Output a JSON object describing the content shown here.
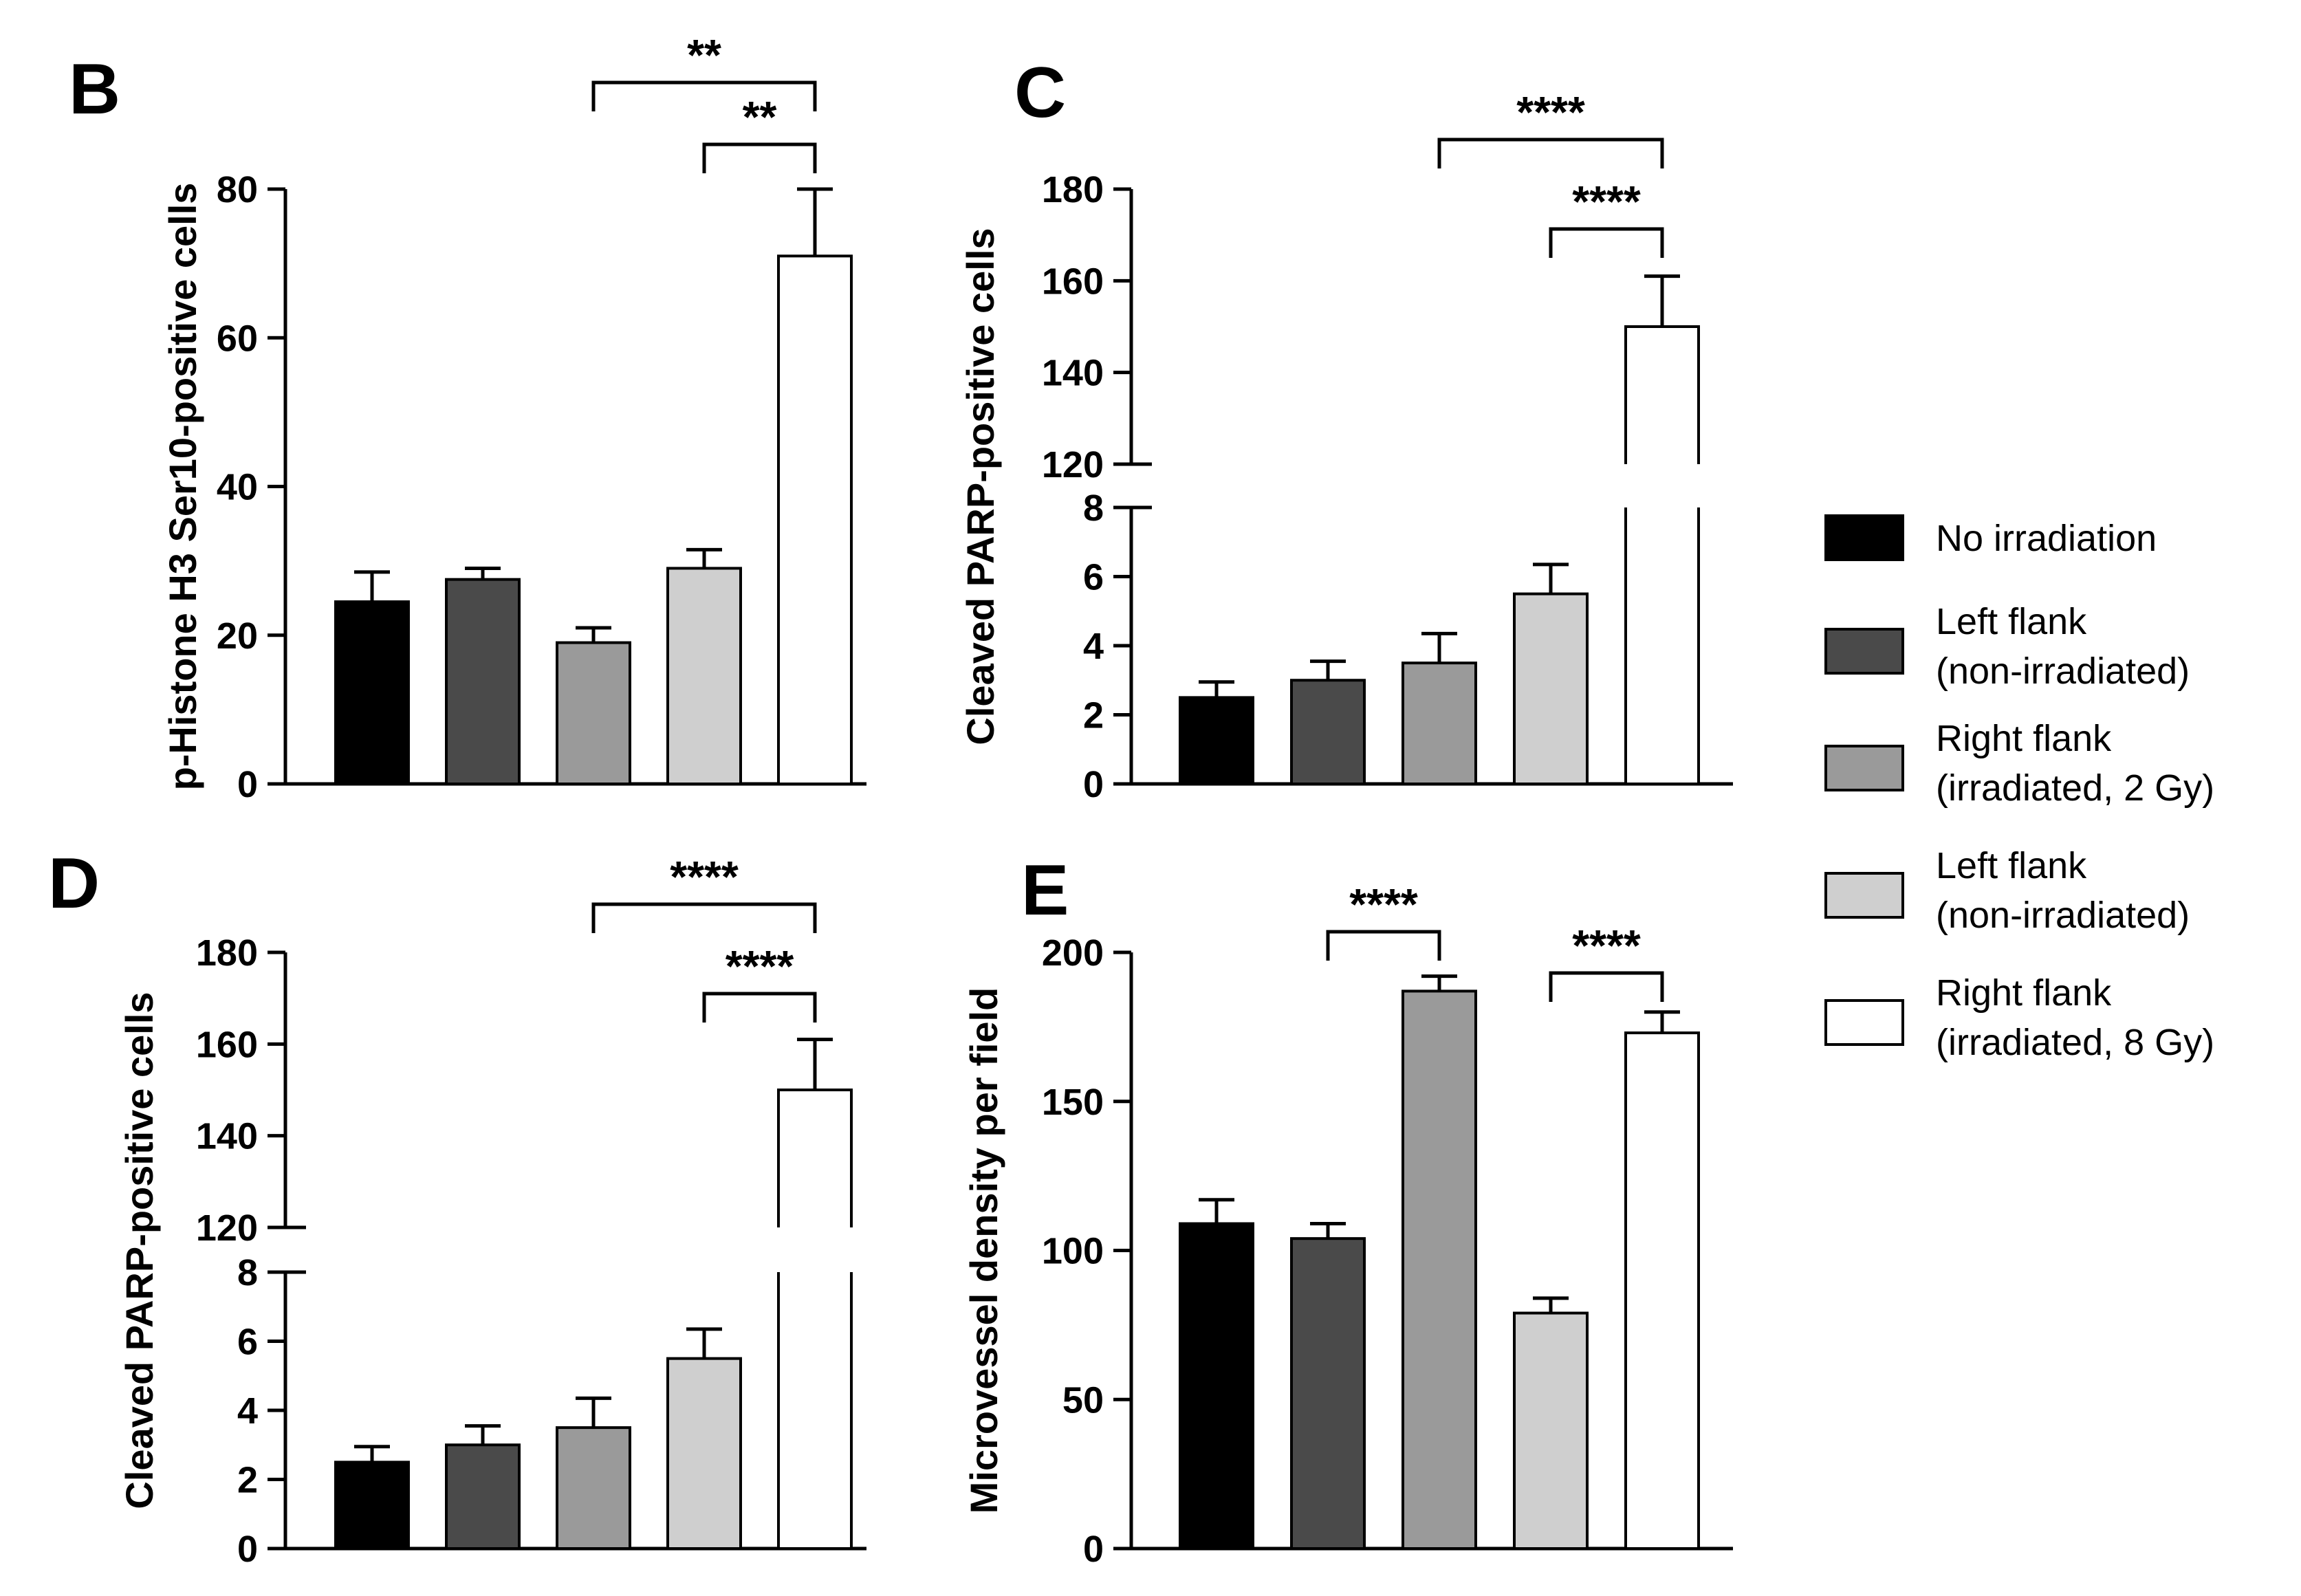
{
  "colors": {
    "No irradiation": "#000000",
    "Left flank (non-irradiated) dark": "#4a4a4a",
    "Right flank (irradiated, 2 Gy)": "#9a9a9a",
    "Left flank (non-irradiated) light": "#cfcfcf",
    "Right flank (irradiated, 8 Gy)": "#ffffff",
    "stroke": "#000000"
  },
  "legend": [
    {
      "lines": [
        "No irradiation"
      ],
      "color": "#000000"
    },
    {
      "lines": [
        "Left flank",
        "(non-irradiated)"
      ],
      "color": "#4a4a4a"
    },
    {
      "lines": [
        "Right flank",
        "(irradiated, 2 Gy)"
      ],
      "color": "#9a9a9a"
    },
    {
      "lines": [
        "Left flank",
        "(non-irradiated)"
      ],
      "color": "#cfcfcf"
    },
    {
      "lines": [
        "Right flank",
        "(irradiated, 8 Gy)"
      ],
      "color": "#ffffff"
    }
  ],
  "chart_data": [
    {
      "panel": "B",
      "type": "bar",
      "title": "",
      "ylabel": "p-Histone H3 Ser10-positive cells",
      "xlabel": "",
      "ylim": [
        0,
        80
      ],
      "yticks": [
        0,
        20,
        40,
        60,
        80
      ],
      "categories": [
        "No irradiation",
        "Left flank (non-irradiated)",
        "Right flank (irradiated, 2 Gy)",
        "Left flank (non-irradiated)",
        "Right flank (irradiated, 8 Gy)"
      ],
      "values": [
        24.5,
        27.5,
        19,
        29,
        71
      ],
      "errors": [
        4,
        1.5,
        2,
        2.5,
        9
      ],
      "significance": [
        {
          "from": 2,
          "to": 4,
          "label": "**"
        },
        {
          "from": 3,
          "to": 4,
          "label": "**"
        }
      ]
    },
    {
      "panel": "C",
      "type": "bar",
      "title": "",
      "ylabel": "Cleaved PARP-positive cells",
      "xlabel": "",
      "broken_axis": true,
      "ylim_lower": [
        0,
        8
      ],
      "yticks_lower": [
        0,
        2,
        4,
        6,
        8
      ],
      "ylim_upper": [
        120,
        180
      ],
      "yticks_upper": [
        120,
        140,
        160,
        180
      ],
      "categories": [
        "No irradiation",
        "Left flank (non-irradiated)",
        "Right flank (irradiated, 2 Gy)",
        "Left flank (non-irradiated)",
        "Right flank (irradiated, 8 Gy)"
      ],
      "values": [
        2.5,
        3,
        3.5,
        5.5,
        150
      ],
      "errors": [
        0.45,
        0.55,
        0.85,
        0.85,
        11
      ],
      "significance": [
        {
          "from": 2,
          "to": 4,
          "label": "****"
        },
        {
          "from": 3,
          "to": 4,
          "label": "****"
        }
      ]
    },
    {
      "panel": "D",
      "type": "bar",
      "title": "",
      "ylabel": "Cleaved PARP-positive cells",
      "xlabel": "",
      "broken_axis": true,
      "ylim_lower": [
        0,
        8
      ],
      "yticks_lower": [
        0,
        2,
        4,
        6,
        8
      ],
      "ylim_upper": [
        120,
        180
      ],
      "yticks_upper": [
        120,
        140,
        160,
        180
      ],
      "categories": [
        "No irradiation",
        "Left flank (non-irradiated)",
        "Right flank (irradiated, 2 Gy)",
        "Left flank (non-irradiated)",
        "Right flank (irradiated, 8 Gy)"
      ],
      "values": [
        2.5,
        3,
        3.5,
        5.5,
        150
      ],
      "errors": [
        0.45,
        0.55,
        0.85,
        0.85,
        11
      ],
      "significance": [
        {
          "from": 2,
          "to": 4,
          "label": "****"
        },
        {
          "from": 3,
          "to": 4,
          "label": "****"
        }
      ]
    },
    {
      "panel": "E",
      "type": "bar",
      "title": "",
      "ylabel": "Microvessel density per field",
      "xlabel": "",
      "ylim": [
        0,
        200
      ],
      "yticks": [
        0,
        50,
        100,
        150,
        200
      ],
      "categories": [
        "No irradiation",
        "Left flank (non-irradiated)",
        "Right flank (irradiated, 2 Gy)",
        "Left flank (non-irradiated)",
        "Right flank (irradiated, 8 Gy)"
      ],
      "values": [
        109,
        104,
        187,
        79,
        173
      ],
      "errors": [
        8,
        5,
        5,
        5,
        7
      ],
      "significance": [
        {
          "from": 1,
          "to": 2,
          "label": "****"
        },
        {
          "from": 3,
          "to": 4,
          "label": "****"
        }
      ]
    }
  ]
}
